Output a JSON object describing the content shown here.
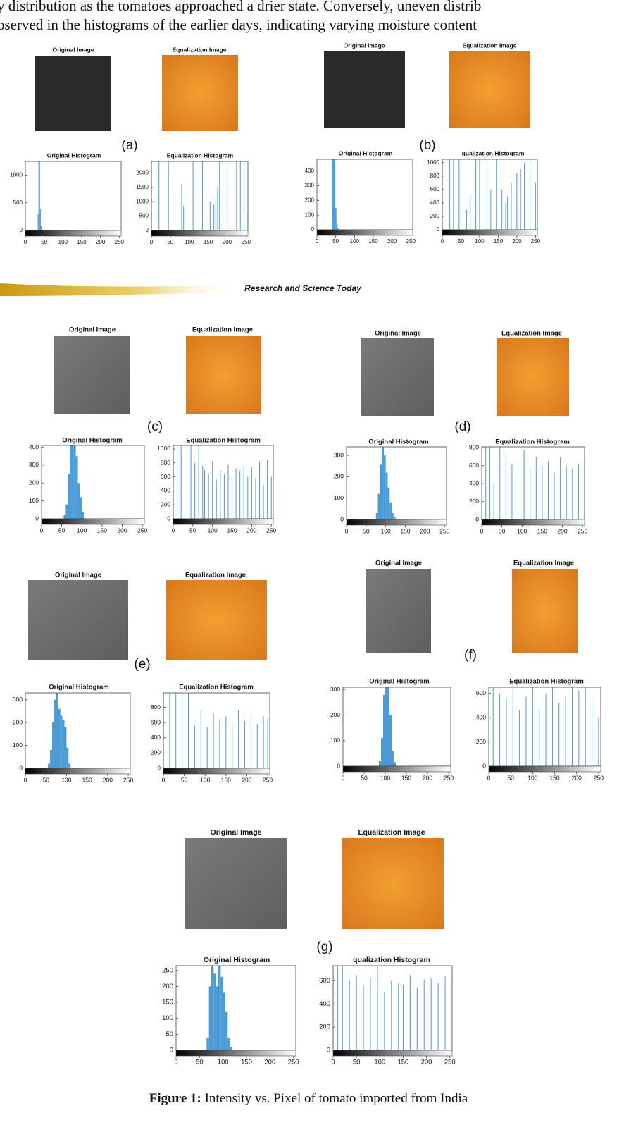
{
  "text": [
    "y distribution as the tomatoes approached a drier state. Conversely, uneven distrib",
    "oserved in the histograms of the earlier days, indicating varying moisture content"
  ],
  "header_band": "Research and Science Today",
  "panels": [
    {
      "label": "(a)",
      "images": [
        {
          "title": "Original Image"
        },
        {
          "title": "Equalization Image"
        }
      ],
      "charts": [
        {
          "type": "histogram",
          "title": "Original Histogram",
          "bins": [
            33,
            35,
            37,
            39,
            41,
            43
          ],
          "values": [
            300,
            1250,
            1250,
            400,
            80
          ],
          "xlim": [
            0,
            255
          ],
          "ylim": [
            0,
            1250
          ],
          "xticks": [
            0,
            50,
            100,
            150,
            200,
            250
          ],
          "yticks": [
            0,
            500,
            1000
          ],
          "color": "#4a9bd6"
        },
        {
          "type": "stem",
          "title": "Equalization Histogram",
          "x": [
            0,
            20,
            45,
            80,
            85,
            110,
            135,
            155,
            165,
            170,
            175,
            180,
            200,
            225,
            235,
            245,
            255
          ],
          "values": [
            2400,
            2400,
            2400,
            1600,
            850,
            2400,
            2400,
            1000,
            900,
            1100,
            1500,
            2400,
            2400,
            2400,
            2400,
            2400,
            600
          ],
          "xlim": [
            0,
            255
          ],
          "ylim": [
            0,
            2400
          ],
          "xticks": [
            0,
            50,
            100,
            150,
            200,
            250
          ],
          "yticks": [
            0,
            500,
            1000,
            1500,
            2000
          ],
          "color": "#4a9bd6"
        }
      ]
    },
    {
      "label": "(b)",
      "images": [
        {
          "title": "Original Image"
        },
        {
          "title": "Equalization Image"
        }
      ],
      "charts": [
        {
          "type": "histogram",
          "title": "Original Histogram",
          "bins": [
            40,
            43,
            46,
            49,
            52,
            55,
            58
          ],
          "values": [
            480,
            480,
            480,
            150,
            40,
            10
          ],
          "xlim": [
            0,
            255
          ],
          "ylim": [
            0,
            480
          ],
          "xticks": [
            0,
            50,
            100,
            150,
            200,
            250
          ],
          "yticks": [
            0,
            100,
            200,
            300,
            400
          ],
          "color": "#4a9bd6"
        },
        {
          "type": "stem",
          "title": "qualization Histogram",
          "x": [
            0,
            20,
            30,
            45,
            65,
            75,
            90,
            100,
            120,
            130,
            145,
            160,
            170,
            175,
            185,
            200,
            210,
            220,
            235,
            250,
            255
          ],
          "values": [
            1050,
            1050,
            1050,
            1050,
            300,
            520,
            1050,
            1050,
            1050,
            600,
            1050,
            600,
            400,
            500,
            700,
            850,
            900,
            1000,
            1050,
            700,
            300
          ],
          "xlim": [
            0,
            255
          ],
          "ylim": [
            0,
            1050
          ],
          "xticks": [
            0,
            50,
            100,
            150,
            200,
            250
          ],
          "yticks": [
            0,
            200,
            400,
            600,
            800,
            1000
          ],
          "color": "#4a9bd6"
        }
      ]
    },
    {
      "label": "(c)",
      "images": [
        {
          "title": "Original Image"
        },
        {
          "title": "Equalization Image"
        }
      ],
      "charts": [
        {
          "type": "histogram",
          "title": "Original Histogram",
          "bins": [
            55,
            60,
            65,
            70,
            75,
            80,
            85,
            90,
            95,
            100,
            105
          ],
          "values": [
            20,
            80,
            250,
            410,
            410,
            410,
            350,
            200,
            120,
            40
          ],
          "xlim": [
            0,
            255
          ],
          "ylim": [
            0,
            410
          ],
          "xticks": [
            0,
            50,
            100,
            150,
            200,
            250
          ],
          "yticks": [
            0,
            100,
            200,
            300,
            400
          ],
          "color": "#4a9bd6"
        },
        {
          "type": "stem",
          "title": "Equalization Histogram",
          "x": [
            0,
            10,
            20,
            45,
            55,
            65,
            75,
            80,
            90,
            100,
            110,
            120,
            130,
            140,
            150,
            160,
            170,
            180,
            190,
            200,
            210,
            220,
            230,
            240,
            250
          ],
          "values": [
            1050,
            1050,
            1050,
            1050,
            800,
            1050,
            760,
            700,
            650,
            820,
            560,
            700,
            640,
            780,
            600,
            720,
            690,
            760,
            600,
            740,
            580,
            820,
            480,
            850,
            600
          ],
          "xlim": [
            0,
            255
          ],
          "ylim": [
            0,
            1050
          ],
          "xticks": [
            0,
            50,
            100,
            150,
            200,
            250
          ],
          "yticks": [
            0,
            200,
            400,
            600,
            800,
            1000
          ],
          "color": "#4a9bd6"
        }
      ]
    },
    {
      "label": "(d)",
      "images": [
        {
          "title": "Original Image"
        },
        {
          "title": "Equalization Image"
        }
      ],
      "charts": [
        {
          "type": "histogram",
          "title": "Original Histogram",
          "bins": [
            75,
            80,
            85,
            90,
            95,
            100,
            105,
            110,
            115,
            120,
            125
          ],
          "values": [
            30,
            120,
            260,
            340,
            300,
            220,
            150,
            80,
            30,
            10
          ],
          "xlim": [
            0,
            255
          ],
          "ylim": [
            0,
            340
          ],
          "xticks": [
            0,
            50,
            100,
            150,
            200,
            250
          ],
          "yticks": [
            0,
            100,
            200,
            300
          ],
          "color": "#4a9bd6"
        },
        {
          "type": "stem",
          "title": "Equalization Histogram",
          "x": [
            0,
            10,
            20,
            30,
            45,
            60,
            75,
            90,
            105,
            120,
            135,
            150,
            165,
            180,
            195,
            210,
            225,
            240,
            255
          ],
          "values": [
            810,
            810,
            810,
            400,
            810,
            720,
            620,
            600,
            780,
            560,
            700,
            590,
            650,
            520,
            700,
            600,
            560,
            620,
            720
          ],
          "xlim": [
            0,
            255
          ],
          "ylim": [
            0,
            810
          ],
          "xticks": [
            0,
            50,
            100,
            150,
            200,
            250
          ],
          "yticks": [
            0,
            200,
            400,
            600,
            800
          ],
          "color": "#4a9bd6"
        }
      ]
    },
    {
      "label": "(e)",
      "images": [
        {
          "title": "Original Image"
        },
        {
          "title": "Equalization Image"
        }
      ],
      "charts": [
        {
          "type": "histogram",
          "title": "Original Histogram",
          "bins": [
            55,
            60,
            65,
            70,
            75,
            80,
            85,
            90,
            95,
            100,
            105,
            110
          ],
          "values": [
            20,
            80,
            200,
            300,
            330,
            260,
            230,
            210,
            180,
            90,
            20
          ],
          "xlim": [
            0,
            255
          ],
          "ylim": [
            0,
            330
          ],
          "xticks": [
            0,
            50,
            100,
            150,
            200,
            250
          ],
          "yticks": [
            0,
            100,
            200,
            300
          ],
          "color": "#4a9bd6"
        },
        {
          "type": "stem",
          "title": "Equalization Histogram",
          "x": [
            0,
            15,
            30,
            45,
            60,
            75,
            90,
            105,
            120,
            135,
            150,
            165,
            180,
            195,
            210,
            225,
            240,
            250
          ],
          "values": [
            990,
            990,
            990,
            990,
            990,
            560,
            760,
            540,
            720,
            650,
            680,
            560,
            760,
            620,
            700,
            580,
            680,
            650
          ],
          "xlim": [
            0,
            255
          ],
          "ylim": [
            0,
            990
          ],
          "xticks": [
            0,
            50,
            100,
            150,
            200,
            250
          ],
          "yticks": [
            0,
            200,
            400,
            600,
            800
          ],
          "color": "#4a9bd6"
        }
      ]
    },
    {
      "label": "(f)",
      "images": [
        {
          "title": "Original Image"
        },
        {
          "title": "Equalization Image"
        }
      ],
      "charts": [
        {
          "type": "histogram",
          "title": "Original Histogram",
          "bins": [
            85,
            90,
            95,
            100,
            105,
            110,
            115,
            120,
            125
          ],
          "values": [
            20,
            110,
            280,
            310,
            310,
            200,
            60,
            15
          ],
          "xlim": [
            0,
            255
          ],
          "ylim": [
            0,
            310
          ],
          "xticks": [
            0,
            50,
            100,
            150,
            200,
            250
          ],
          "yticks": [
            0,
            100,
            200,
            300
          ],
          "color": "#4a9bd6"
        },
        {
          "type": "stem",
          "title": "Equalization Histogram",
          "x": [
            0,
            10,
            25,
            40,
            55,
            70,
            85,
            100,
            115,
            130,
            145,
            160,
            175,
            190,
            205,
            220,
            235,
            250
          ],
          "values": [
            650,
            650,
            600,
            560,
            650,
            460,
            570,
            650,
            480,
            600,
            650,
            520,
            580,
            650,
            620,
            650,
            560,
            400
          ],
          "xlim": [
            0,
            255
          ],
          "ylim": [
            0,
            650
          ],
          "xticks": [
            0,
            50,
            100,
            150,
            200,
            250
          ],
          "yticks": [
            0,
            200,
            400,
            600
          ],
          "color": "#4a9bd6"
        }
      ]
    },
    {
      "label": "(g)",
      "images": [
        {
          "title": "Original Image"
        },
        {
          "title": "Equalization Image"
        }
      ],
      "charts": [
        {
          "type": "histogram",
          "title": "Original Histogram",
          "bins": [
            65,
            70,
            75,
            80,
            85,
            90,
            95,
            100,
            105,
            110,
            115,
            120
          ],
          "values": [
            40,
            200,
            265,
            240,
            200,
            265,
            230,
            180,
            120,
            40,
            10
          ],
          "xlim": [
            0,
            255
          ],
          "ylim": [
            0,
            265
          ],
          "xticks": [
            0,
            50,
            100,
            150,
            200,
            250
          ],
          "yticks": [
            0,
            50,
            100,
            150,
            200,
            250
          ],
          "color": "#4a9bd6"
        },
        {
          "type": "stem",
          "title": "qualization Histogram",
          "x": [
            0,
            10,
            20,
            35,
            50,
            65,
            80,
            95,
            110,
            125,
            140,
            150,
            165,
            180,
            195,
            210,
            225,
            240,
            255
          ],
          "values": [
            730,
            730,
            730,
            600,
            650,
            560,
            620,
            730,
            500,
            600,
            580,
            560,
            650,
            540,
            610,
            620,
            580,
            640,
            600
          ],
          "xlim": [
            0,
            255
          ],
          "ylim": [
            0,
            730
          ],
          "xticks": [
            0,
            50,
            100,
            150,
            200,
            250
          ],
          "yticks": [
            0,
            200,
            400,
            600
          ],
          "color": "#4a9bd6"
        }
      ]
    }
  ],
  "caption": {
    "label": "Figure 1:",
    "text": " Intensity vs. Pixel of tomato imported from India"
  }
}
